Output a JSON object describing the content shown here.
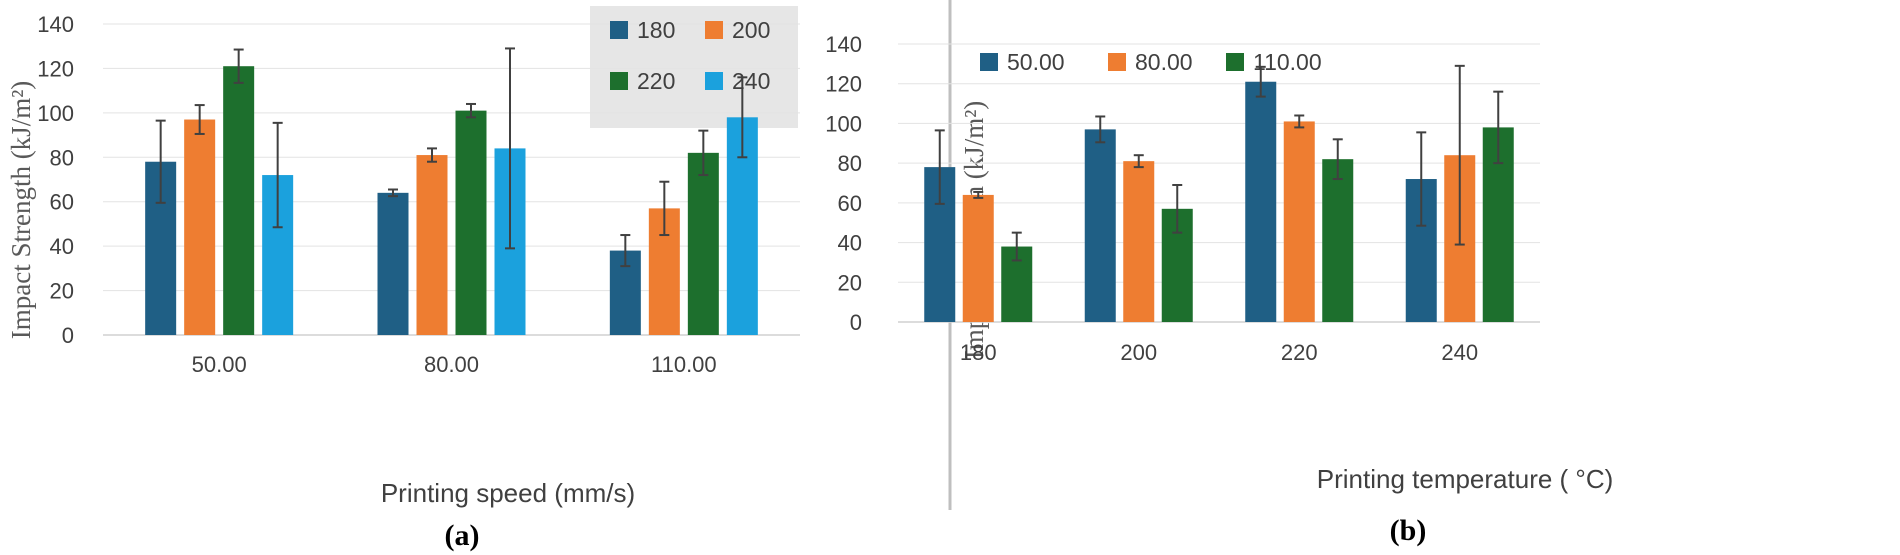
{
  "colors": {
    "s1": "#1f5f85",
    "s2": "#ee7d31",
    "s3": "#1d6f2d",
    "s4": "#1ba1dd",
    "errorbar": "#404040",
    "legend_bg": "#e6e6e6"
  },
  "chart_data": [
    {
      "panel_label": "(a)",
      "type": "bar",
      "title": "",
      "xlabel": "Printing speed (mm/s)",
      "ylabel": "Impact Strength (kJ/m²)",
      "ylim": [
        0,
        140
      ],
      "yticks": [
        "0",
        "20",
        "40",
        "60",
        "80",
        "100",
        "120",
        "140"
      ],
      "categories": [
        "50.00",
        "80.00",
        "110.00"
      ],
      "legend_placement": "top-right",
      "series": [
        {
          "name": "180",
          "color_key": "s1",
          "values": [
            78,
            64,
            38
          ],
          "errors": [
            18.5,
            1.5,
            7
          ]
        },
        {
          "name": "200",
          "color_key": "s2",
          "values": [
            97,
            81,
            57
          ],
          "errors": [
            6.5,
            3,
            12
          ]
        },
        {
          "name": "220",
          "color_key": "s3",
          "values": [
            121,
            101,
            82
          ],
          "errors": [
            7.5,
            3,
            10
          ]
        },
        {
          "name": "240",
          "color_key": "s4",
          "values": [
            72,
            84,
            98
          ],
          "errors": [
            23.5,
            45,
            18
          ]
        }
      ]
    },
    {
      "panel_label": "(b)",
      "type": "bar",
      "title": "",
      "xlabel": "Printing temperature ( °C)",
      "ylabel": "Impact Strength (kJ/m²)",
      "ylim": [
        0,
        140
      ],
      "yticks": [
        "0",
        "20",
        "40",
        "60",
        "80",
        "100",
        "120",
        "140"
      ],
      "categories": [
        "180",
        "200",
        "220",
        "240"
      ],
      "legend_placement": "top",
      "series": [
        {
          "name": "50.00",
          "color_key": "s1",
          "values": [
            78,
            97,
            121,
            72
          ],
          "errors": [
            18.5,
            6.5,
            7.5,
            23.5
          ]
        },
        {
          "name": "80.00",
          "color_key": "s2",
          "values": [
            64,
            81,
            101,
            84
          ],
          "errors": [
            1.5,
            3,
            3,
            45
          ]
        },
        {
          "name": "110.00",
          "color_key": "s3",
          "values": [
            38,
            57,
            82,
            98
          ],
          "errors": [
            7,
            12,
            10,
            18
          ]
        }
      ]
    }
  ]
}
